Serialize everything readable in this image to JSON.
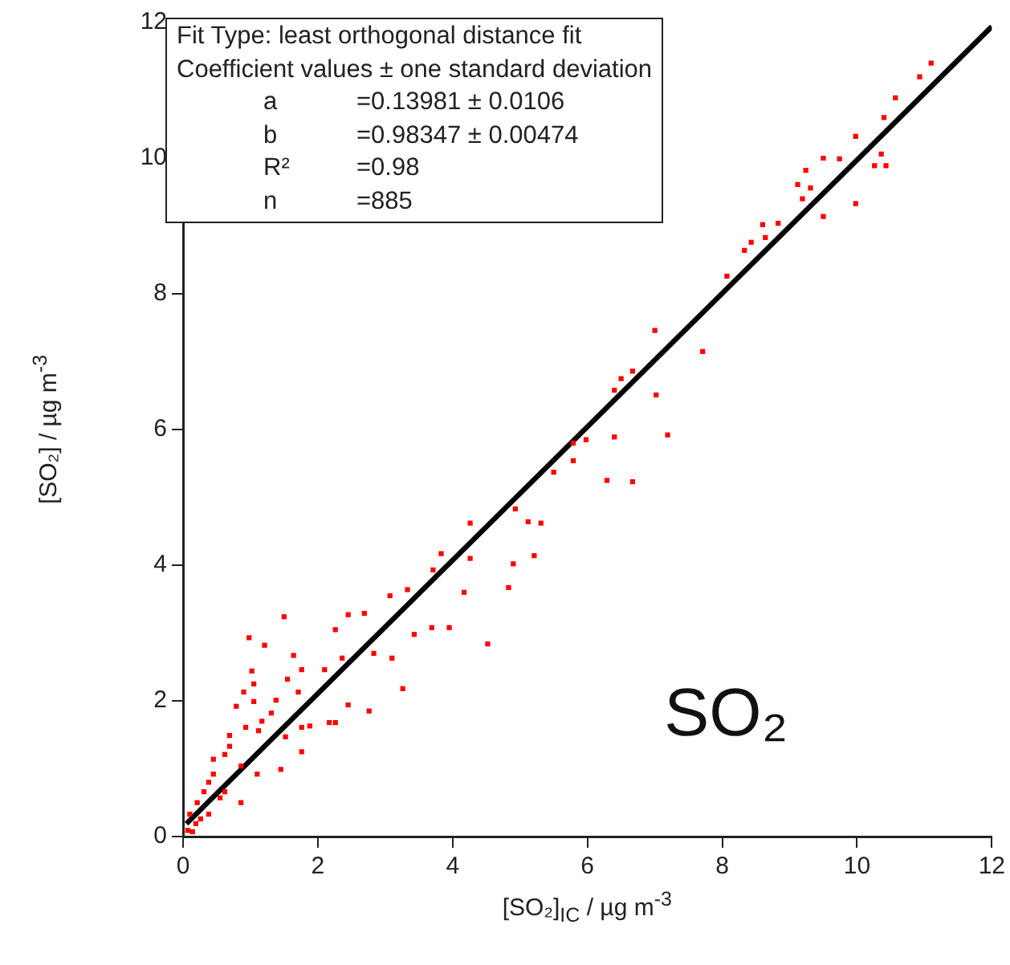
{
  "chart_data": {
    "type": "scatter",
    "xlabel": "[SO₂]$_{IC}$ / µg m$^{-3}$",
    "ylabel": "[SO₂] / µg m$^{-3}$",
    "annotations": [
      "Fit Type: least orthogonal distance fit",
      "Coefficient values ± one standard deviation",
      "a\t=0.13981 ± 0.0106",
      "b\t=0.98347 ± 0.00474",
      "R²\t=0.98",
      "n\t=885",
      "SO₂"
    ],
    "xlim": [
      0,
      12
    ],
    "ylim": [
      0,
      12
    ],
    "xticks": [
      0,
      2,
      4,
      6,
      8,
      10,
      12
    ],
    "yticks": [
      0,
      2,
      4,
      6,
      8,
      10,
      12
    ],
    "grid": false,
    "legend": false,
    "marker": "square",
    "series": [
      {
        "color": "#ff0000",
        "x": [
          11.1,
          10.93,
          10.57,
          10.4,
          9.98,
          9.5,
          9.74,
          10.26,
          10.43,
          10.36,
          9.98,
          9.24,
          9.12,
          9.31,
          9.19,
          9.5,
          8.83,
          8.6,
          8.64,
          8.43,
          8.33,
          8.07,
          7.0,
          7.71,
          6.67,
          6.5,
          6.4,
          7.02,
          7.19,
          6.4,
          5.98,
          5.79,
          5.79,
          5.5,
          6.29,
          6.67,
          4.93,
          4.26,
          5.12,
          5.31,
          5.21,
          4.9,
          4.83,
          3.83,
          4.26,
          4.17,
          4.52,
          3.71,
          3.33,
          3.43,
          3.69,
          3.95,
          3.07,
          2.83,
          3.1,
          3.26,
          2.76,
          2.45,
          2.69,
          2.26,
          1.5,
          0.98,
          1.21,
          1.64,
          2.36,
          2.1,
          1.76,
          1.55,
          1.02,
          1.05,
          0.9,
          1.71,
          1.38,
          1.05,
          0.79,
          2.45,
          2.26,
          2.17,
          1.88,
          1.76,
          1.17,
          1.31,
          1.12,
          1.52,
          0.69,
          1.76,
          1.45,
          0.86,
          0.86,
          1.1,
          0.62,
          0.45,
          0.62,
          0.38,
          0.21,
          0.1,
          0.07,
          0.19,
          0.38,
          0.55,
          0.31,
          0.45,
          0.69,
          0.93,
          0.14,
          0.26
        ],
        "values": [
          11.4,
          11.2,
          10.89,
          10.6,
          10.32,
          10.0,
          9.99,
          9.89,
          9.89,
          10.06,
          9.33,
          9.82,
          9.61,
          9.56,
          9.4,
          9.14,
          9.04,
          9.02,
          8.83,
          8.76,
          8.64,
          8.26,
          7.46,
          7.15,
          6.86,
          6.75,
          6.58,
          6.51,
          5.92,
          5.89,
          5.85,
          5.8,
          5.54,
          5.37,
          5.25,
          5.23,
          4.83,
          4.62,
          4.64,
          4.62,
          4.14,
          4.02,
          3.67,
          4.17,
          4.1,
          3.6,
          2.84,
          3.93,
          3.64,
          2.98,
          3.08,
          3.08,
          3.55,
          2.7,
          2.63,
          2.18,
          1.85,
          3.27,
          3.29,
          3.05,
          3.24,
          2.93,
          2.82,
          2.67,
          2.63,
          2.46,
          2.46,
          2.32,
          2.44,
          2.25,
          2.13,
          2.13,
          2.01,
          1.99,
          1.92,
          1.94,
          1.68,
          1.68,
          1.63,
          1.61,
          1.7,
          1.82,
          1.56,
          1.47,
          1.49,
          1.25,
          0.99,
          0.5,
          1.04,
          0.92,
          1.21,
          1.14,
          0.66,
          0.8,
          0.5,
          0.33,
          0.09,
          0.19,
          0.33,
          0.57,
          0.66,
          0.92,
          1.33,
          1.61,
          0.07,
          0.26
        ]
      },
      {
        "type": "line",
        "color": "#000000",
        "marker": "none",
        "line_style": "solid",
        "x": [
          0.05,
          12
        ],
        "values": [
          0.19,
          11.94
        ]
      }
    ]
  }
}
